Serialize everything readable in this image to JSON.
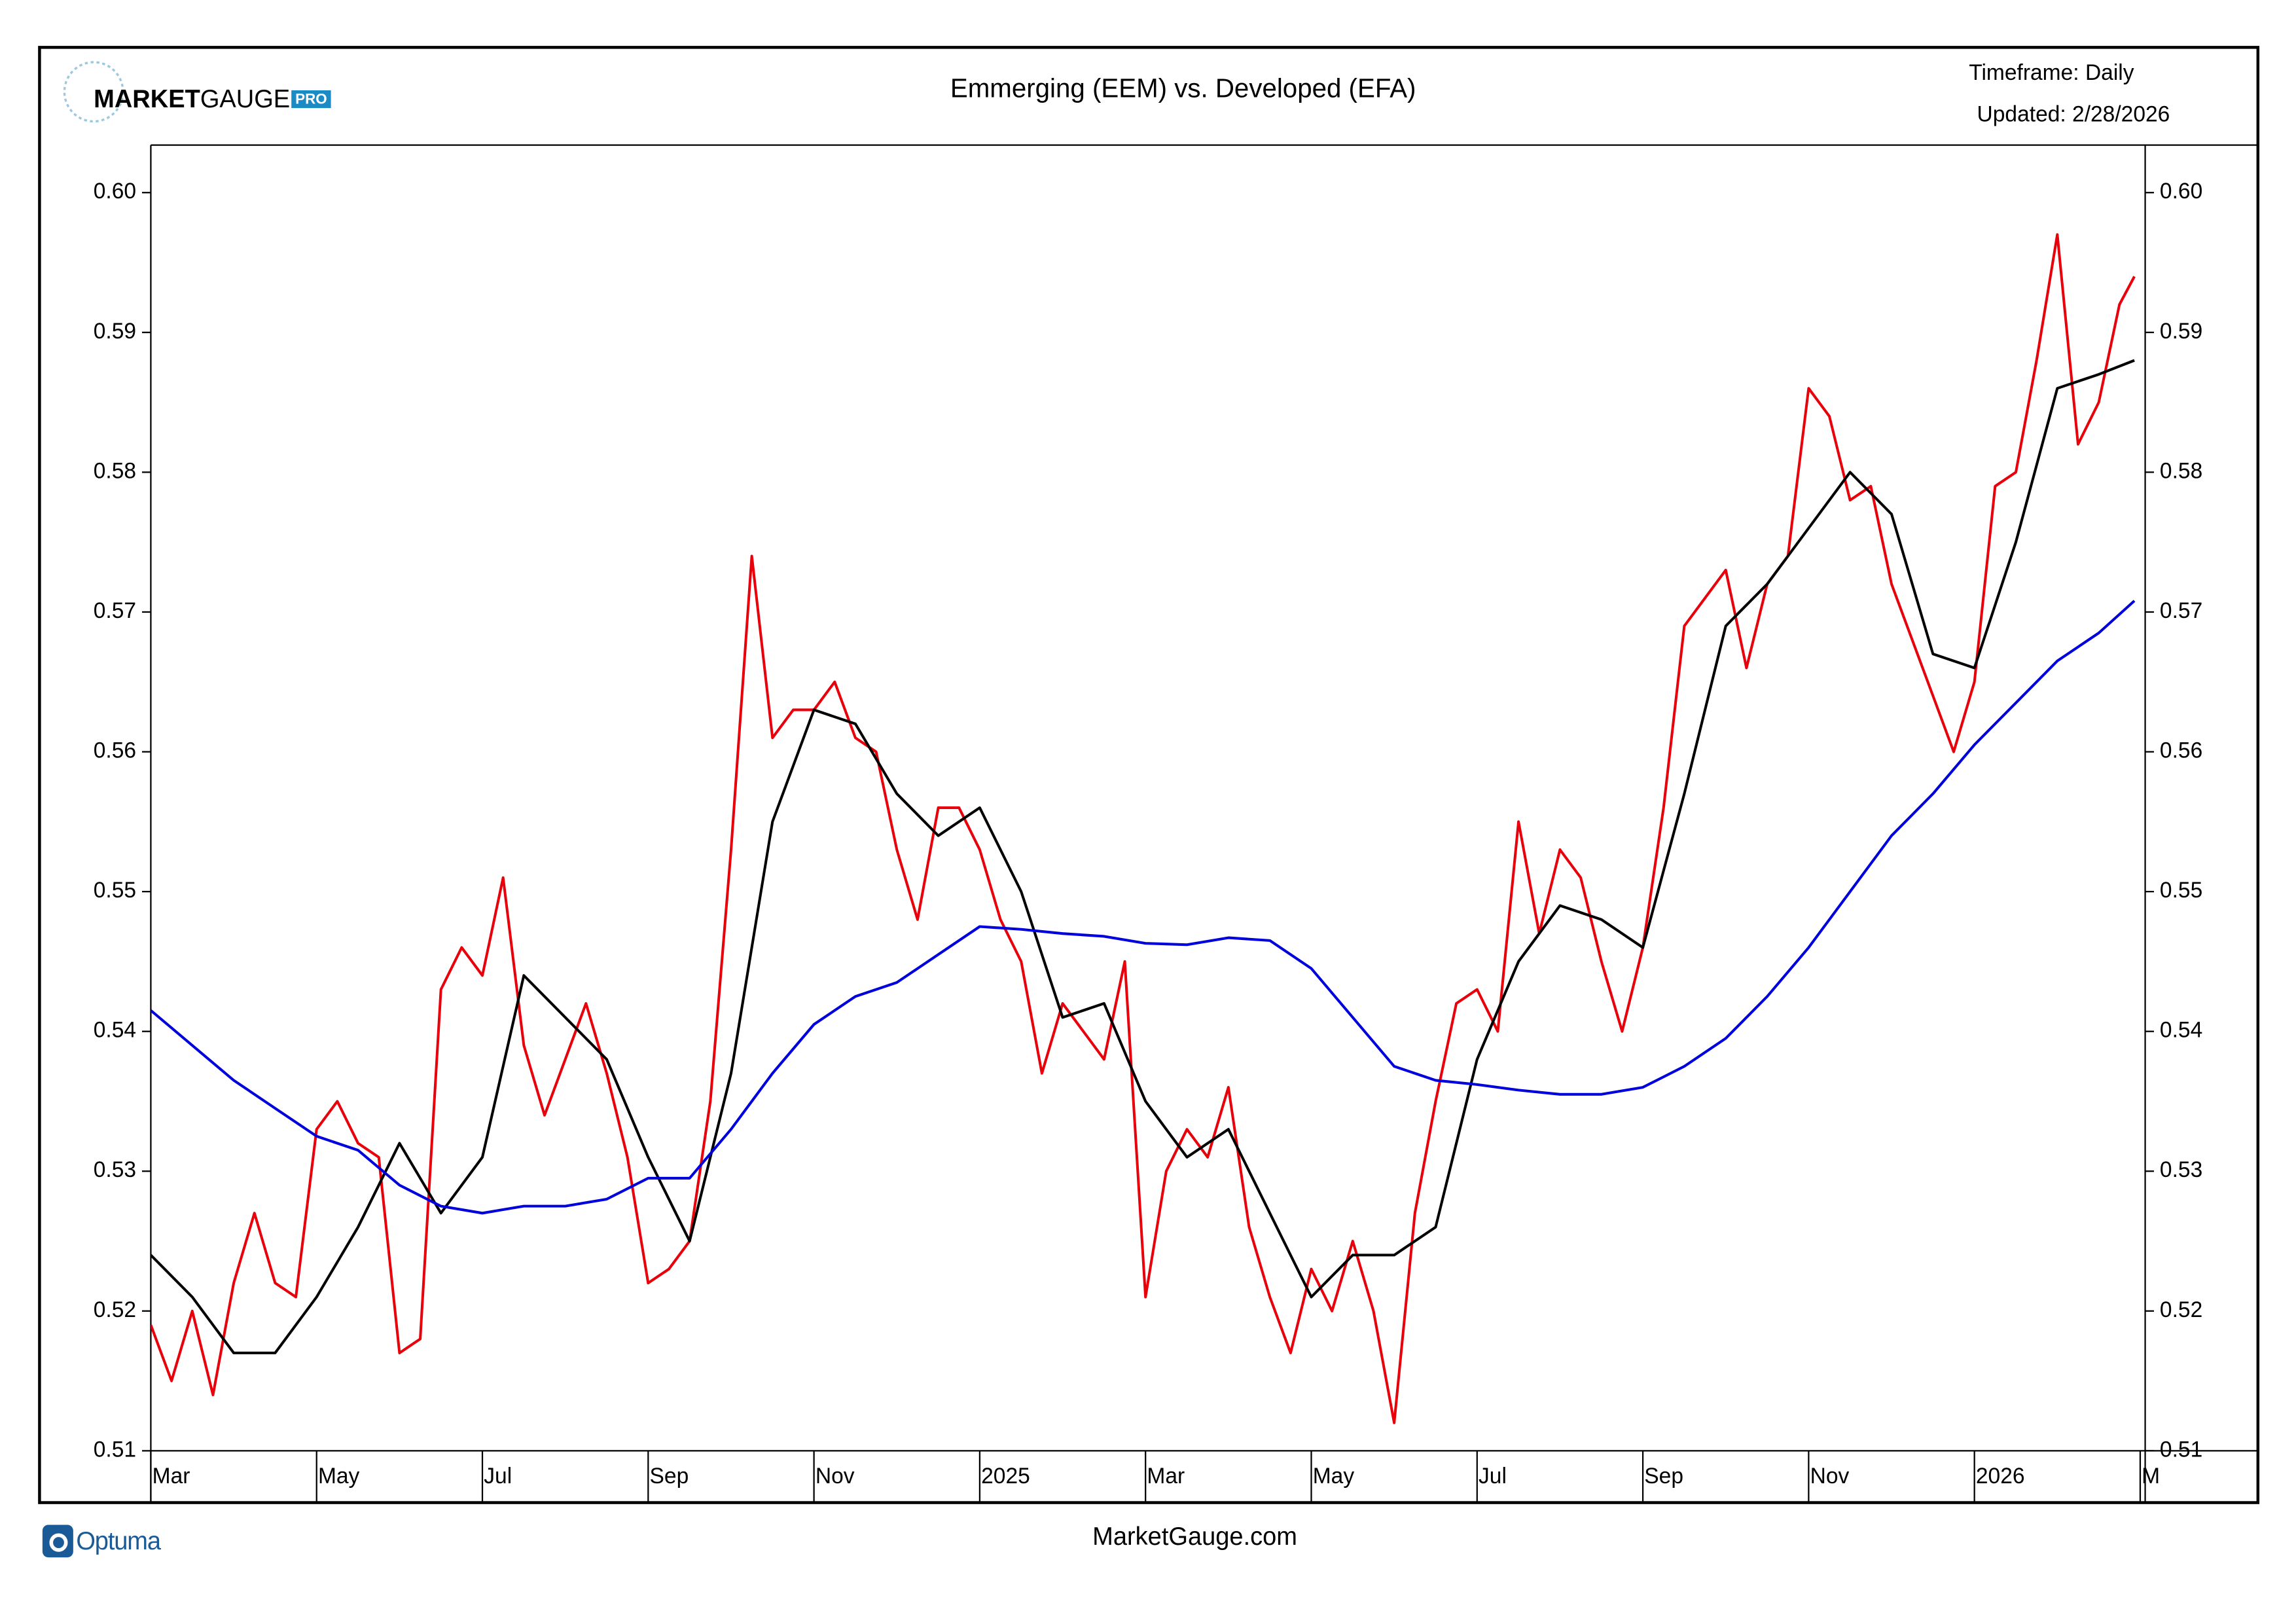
{
  "logo": {
    "market": "MARKET",
    "gauge": "GAUGE",
    "pro": "PRO"
  },
  "timeframe": "Timeframe: Daily",
  "updated": "Updated: 2/28/2026",
  "footer": "MarketGauge.com",
  "footer_logo": "Optuma",
  "chart_data": {
    "type": "line",
    "title": "Emmerging (EEM) vs. Developed (EFA)",
    "xlim": [
      0,
      24.06
    ],
    "xticks": [
      {
        "value": 0,
        "label": "Mar"
      },
      {
        "value": 2,
        "label": "May"
      },
      {
        "value": 4,
        "label": "Jul"
      },
      {
        "value": 6,
        "label": "Sep"
      },
      {
        "value": 8,
        "label": "Nov"
      },
      {
        "value": 10,
        "label": "2025"
      },
      {
        "value": 12,
        "label": "Mar"
      },
      {
        "value": 14,
        "label": "May"
      },
      {
        "value": 16,
        "label": "Jul"
      },
      {
        "value": 18,
        "label": "Sep"
      },
      {
        "value": 20,
        "label": "Nov"
      },
      {
        "value": 22,
        "label": "2026"
      },
      {
        "value": 24,
        "label": "M"
      }
    ],
    "ylim": [
      0.51,
      0.6034
    ],
    "yticks": [
      0.51,
      0.52,
      0.53,
      0.54,
      0.55,
      0.56,
      0.57,
      0.58,
      0.59,
      {
        "value": 0.6,
        "label": "0.60"
      }
    ],
    "grid": false,
    "series": [
      {
        "color": "#e8000b",
        "x": [
          0,
          0.25,
          0.5,
          0.75,
          1,
          1.25,
          1.5,
          1.75,
          2,
          2.25,
          2.5,
          2.75,
          3,
          3.25,
          3.5,
          3.75,
          4,
          4.25,
          4.5,
          4.75,
          5,
          5.25,
          5.5,
          5.75,
          6,
          6.25,
          6.5,
          6.75,
          7,
          7.25,
          7.5,
          7.75,
          8,
          8.25,
          8.5,
          8.75,
          9,
          9.25,
          9.5,
          9.75,
          10,
          10.25,
          10.5,
          10.75,
          11,
          11.25,
          11.5,
          11.75,
          12,
          12.25,
          12.5,
          12.75,
          13,
          13.25,
          13.5,
          13.75,
          14,
          14.25,
          14.5,
          14.75,
          15,
          15.25,
          15.5,
          15.75,
          16,
          16.25,
          16.5,
          16.75,
          17,
          17.25,
          17.5,
          17.75,
          18,
          18.25,
          18.5,
          18.75,
          19,
          19.25,
          19.5,
          19.75,
          20,
          20.25,
          20.5,
          20.75,
          21,
          21.25,
          21.5,
          21.75,
          22,
          22.25,
          22.5,
          22.75,
          23,
          23.25,
          23.5,
          23.75,
          23.93
        ],
        "values": [
          0.519,
          0.515,
          0.52,
          0.514,
          0.522,
          0.527,
          0.522,
          0.521,
          0.533,
          0.535,
          0.532,
          0.531,
          0.517,
          0.518,
          0.543,
          0.546,
          0.544,
          0.551,
          0.539,
          0.534,
          0.538,
          0.542,
          0.537,
          0.531,
          0.522,
          0.523,
          0.525,
          0.535,
          0.553,
          0.574,
          0.561,
          0.563,
          0.563,
          0.565,
          0.561,
          0.56,
          0.553,
          0.548,
          0.556,
          0.556,
          0.553,
          0.548,
          0.545,
          0.537,
          0.542,
          0.54,
          0.538,
          0.545,
          0.521,
          0.53,
          0.533,
          0.531,
          0.536,
          0.526,
          0.521,
          0.517,
          0.523,
          0.52,
          0.525,
          0.52,
          0.512,
          0.527,
          0.535,
          0.542,
          0.543,
          0.54,
          0.555,
          0.547,
          0.553,
          0.551,
          0.545,
          0.54,
          0.546,
          0.556,
          0.569,
          0.571,
          0.573,
          0.566,
          0.572,
          0.574,
          0.586,
          0.584,
          0.578,
          0.579,
          0.572,
          0.568,
          0.564,
          0.56,
          0.565,
          0.579,
          0.58,
          0.588,
          0.597,
          0.582,
          0.585,
          0.592,
          0.594
        ]
      },
      {
        "color": "#000000",
        "x": [
          0,
          0.5,
          1,
          1.5,
          2,
          2.5,
          3,
          3.5,
          4,
          4.5,
          5,
          5.5,
          6,
          6.5,
          7,
          7.5,
          8,
          8.5,
          9,
          9.5,
          10,
          10.5,
          11,
          11.5,
          12,
          12.5,
          13,
          13.5,
          14,
          14.5,
          15,
          15.5,
          16,
          16.5,
          17,
          17.5,
          18,
          18.5,
          19,
          19.5,
          20,
          20.5,
          21,
          21.5,
          22,
          22.5,
          23,
          23.5,
          23.93
        ],
        "values": [
          0.524,
          0.521,
          0.517,
          0.517,
          0.521,
          0.526,
          0.532,
          0.527,
          0.531,
          0.544,
          0.541,
          0.538,
          0.531,
          0.525,
          0.537,
          0.555,
          0.563,
          0.562,
          0.557,
          0.554,
          0.556,
          0.55,
          0.541,
          0.542,
          0.535,
          0.531,
          0.533,
          0.527,
          0.521,
          0.524,
          0.524,
          0.526,
          0.538,
          0.545,
          0.549,
          0.548,
          0.546,
          0.557,
          0.569,
          0.572,
          0.576,
          0.58,
          0.577,
          0.567,
          0.566,
          0.575,
          0.586,
          0.587,
          0.588
        ]
      },
      {
        "color": "#0000dd",
        "x": [
          0,
          0.5,
          1,
          1.5,
          2,
          2.5,
          3,
          3.5,
          4,
          4.5,
          5,
          5.5,
          6,
          6.5,
          7,
          7.5,
          8,
          8.5,
          9,
          9.5,
          10,
          10.5,
          11,
          11.5,
          12,
          12.5,
          13,
          13.5,
          14,
          14.5,
          15,
          15.5,
          16,
          16.5,
          17,
          17.5,
          18,
          18.5,
          19,
          19.5,
          20,
          20.5,
          21,
          21.5,
          22,
          22.5,
          23,
          23.5,
          23.93
        ],
        "values": [
          0.5415,
          0.539,
          0.5365,
          0.5345,
          0.5325,
          0.5315,
          0.529,
          0.5275,
          0.527,
          0.5275,
          0.5275,
          0.528,
          0.5295,
          0.5295,
          0.533,
          0.537,
          0.5405,
          0.5425,
          0.5435,
          0.5455,
          0.5475,
          0.5473,
          0.547,
          0.5468,
          0.5463,
          0.5462,
          0.5467,
          0.5465,
          0.5445,
          0.541,
          0.5375,
          0.5365,
          0.5362,
          0.5358,
          0.5355,
          0.5355,
          0.536,
          0.5375,
          0.5395,
          0.5425,
          0.546,
          0.55,
          0.554,
          0.557,
          0.5605,
          0.5635,
          0.5665,
          0.5685,
          0.5708
        ]
      }
    ]
  }
}
